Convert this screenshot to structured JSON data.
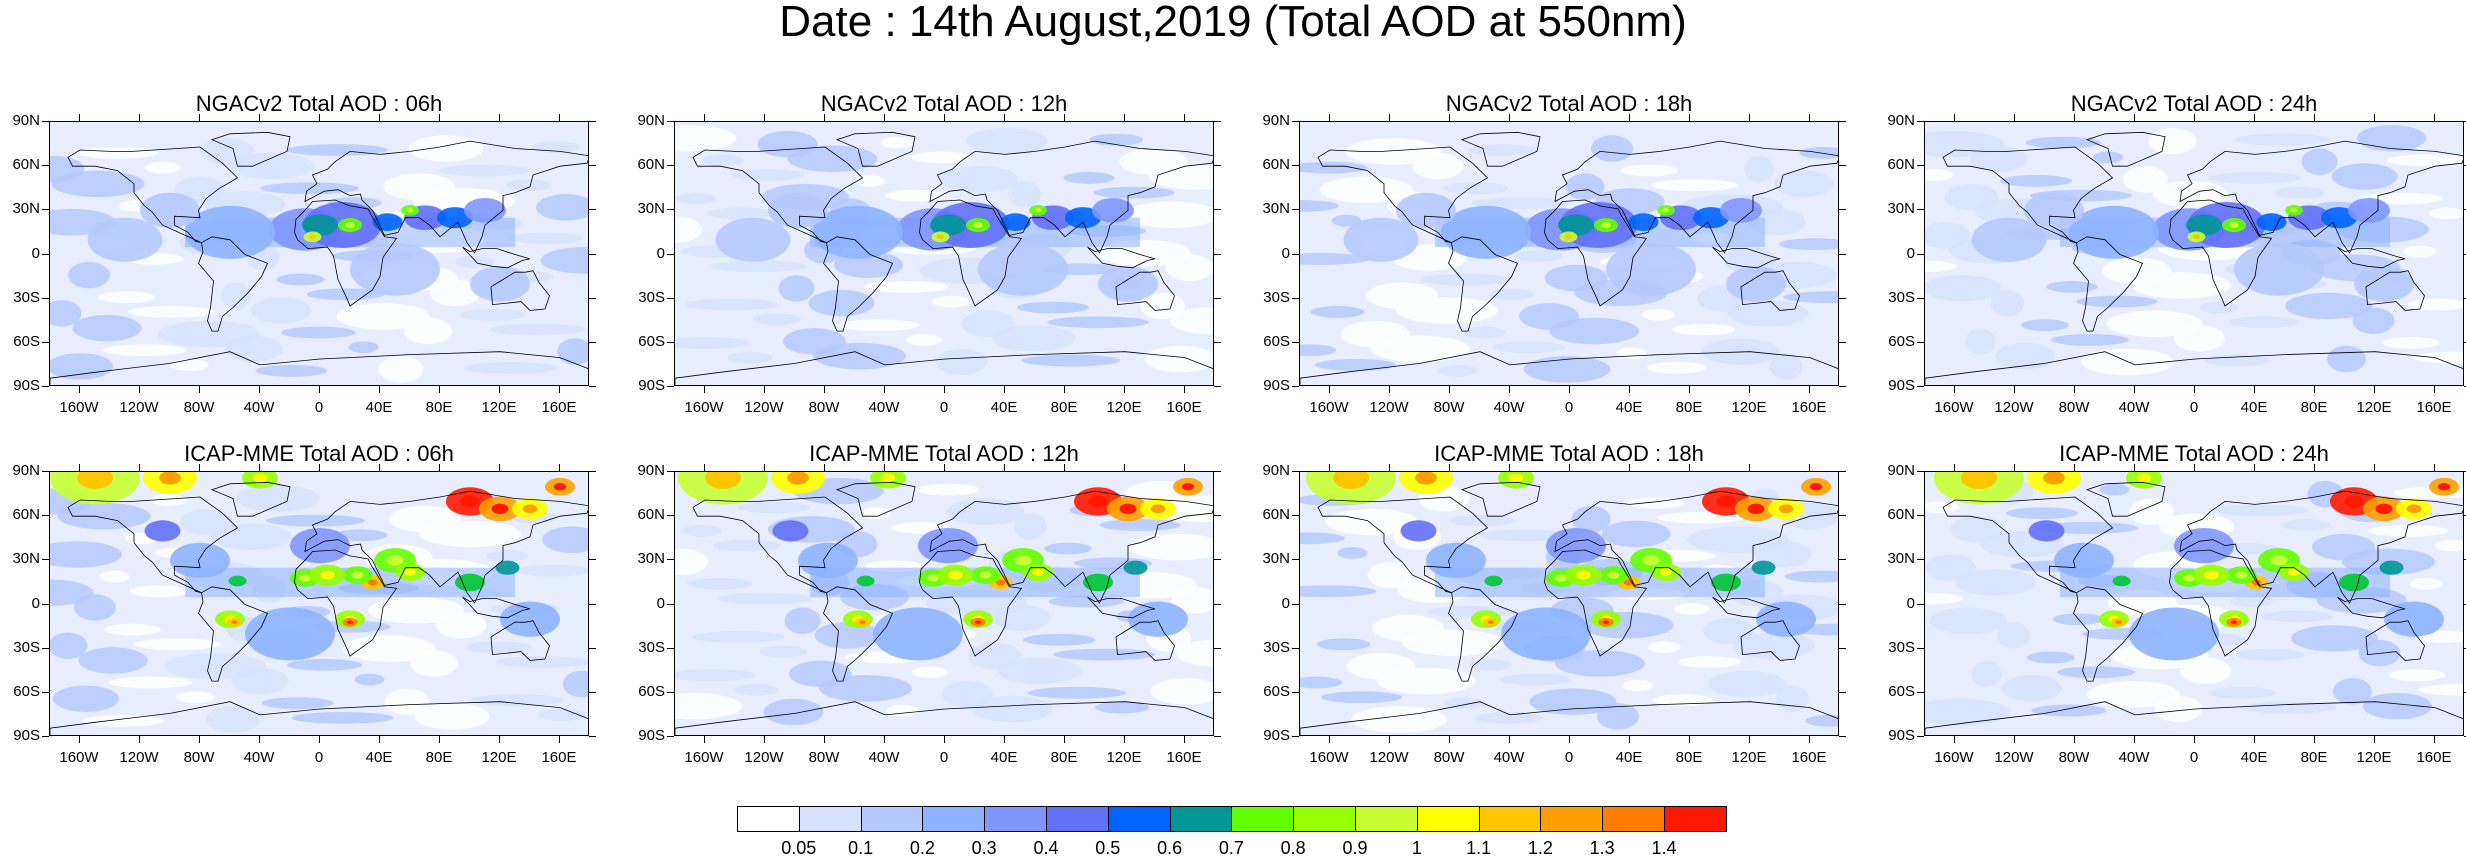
{
  "title": "Date : 14th August,2019 (Total AOD at 550nm)",
  "lat_labels": [
    "90N",
    "60N",
    "30N",
    "0",
    "30S",
    "60S",
    "90S"
  ],
  "lon_labels": [
    "160W",
    "120W",
    "80W",
    "40W",
    "0",
    "40E",
    "80E",
    "120E",
    "160E"
  ],
  "panels": [
    {
      "title": "NGACv2 Total AOD : 06h",
      "model": "NGACv2",
      "hour": "06h"
    },
    {
      "title": "NGACv2 Total AOD : 12h",
      "model": "NGACv2",
      "hour": "12h"
    },
    {
      "title": "NGACv2 Total AOD : 18h",
      "model": "NGACv2",
      "hour": "18h"
    },
    {
      "title": "NGACv2 Total AOD : 24h",
      "model": "NGACv2",
      "hour": "24h"
    },
    {
      "title": "ICAP-MME Total AOD : 06h",
      "model": "ICAP-MME",
      "hour": "06h"
    },
    {
      "title": "ICAP-MME Total AOD : 12h",
      "model": "ICAP-MME",
      "hour": "12h"
    },
    {
      "title": "ICAP-MME Total AOD : 18h",
      "model": "ICAP-MME",
      "hour": "18h"
    },
    {
      "title": "ICAP-MME Total AOD : 24h",
      "model": "ICAP-MME",
      "hour": "24h"
    }
  ],
  "colorbar": {
    "labels": [
      "0.05",
      "0.1",
      "0.2",
      "0.3",
      "0.4",
      "0.5",
      "0.6",
      "0.7",
      "0.8",
      "0.9",
      "1",
      "1.1",
      "1.2",
      "1.3",
      "1.4"
    ],
    "colors": [
      "#ffffff",
      "#d6e2ff",
      "#b5c9ff",
      "#8eb2ff",
      "#7f96ff",
      "#6370f8",
      "#0063ff",
      "#009696",
      "#00c633",
      "#63ff00",
      "#96ff00",
      "#c6ff33",
      "#ffff00",
      "#ffc600",
      "#ffa000",
      "#ff7c00",
      "#ff1900"
    ]
  }
}
